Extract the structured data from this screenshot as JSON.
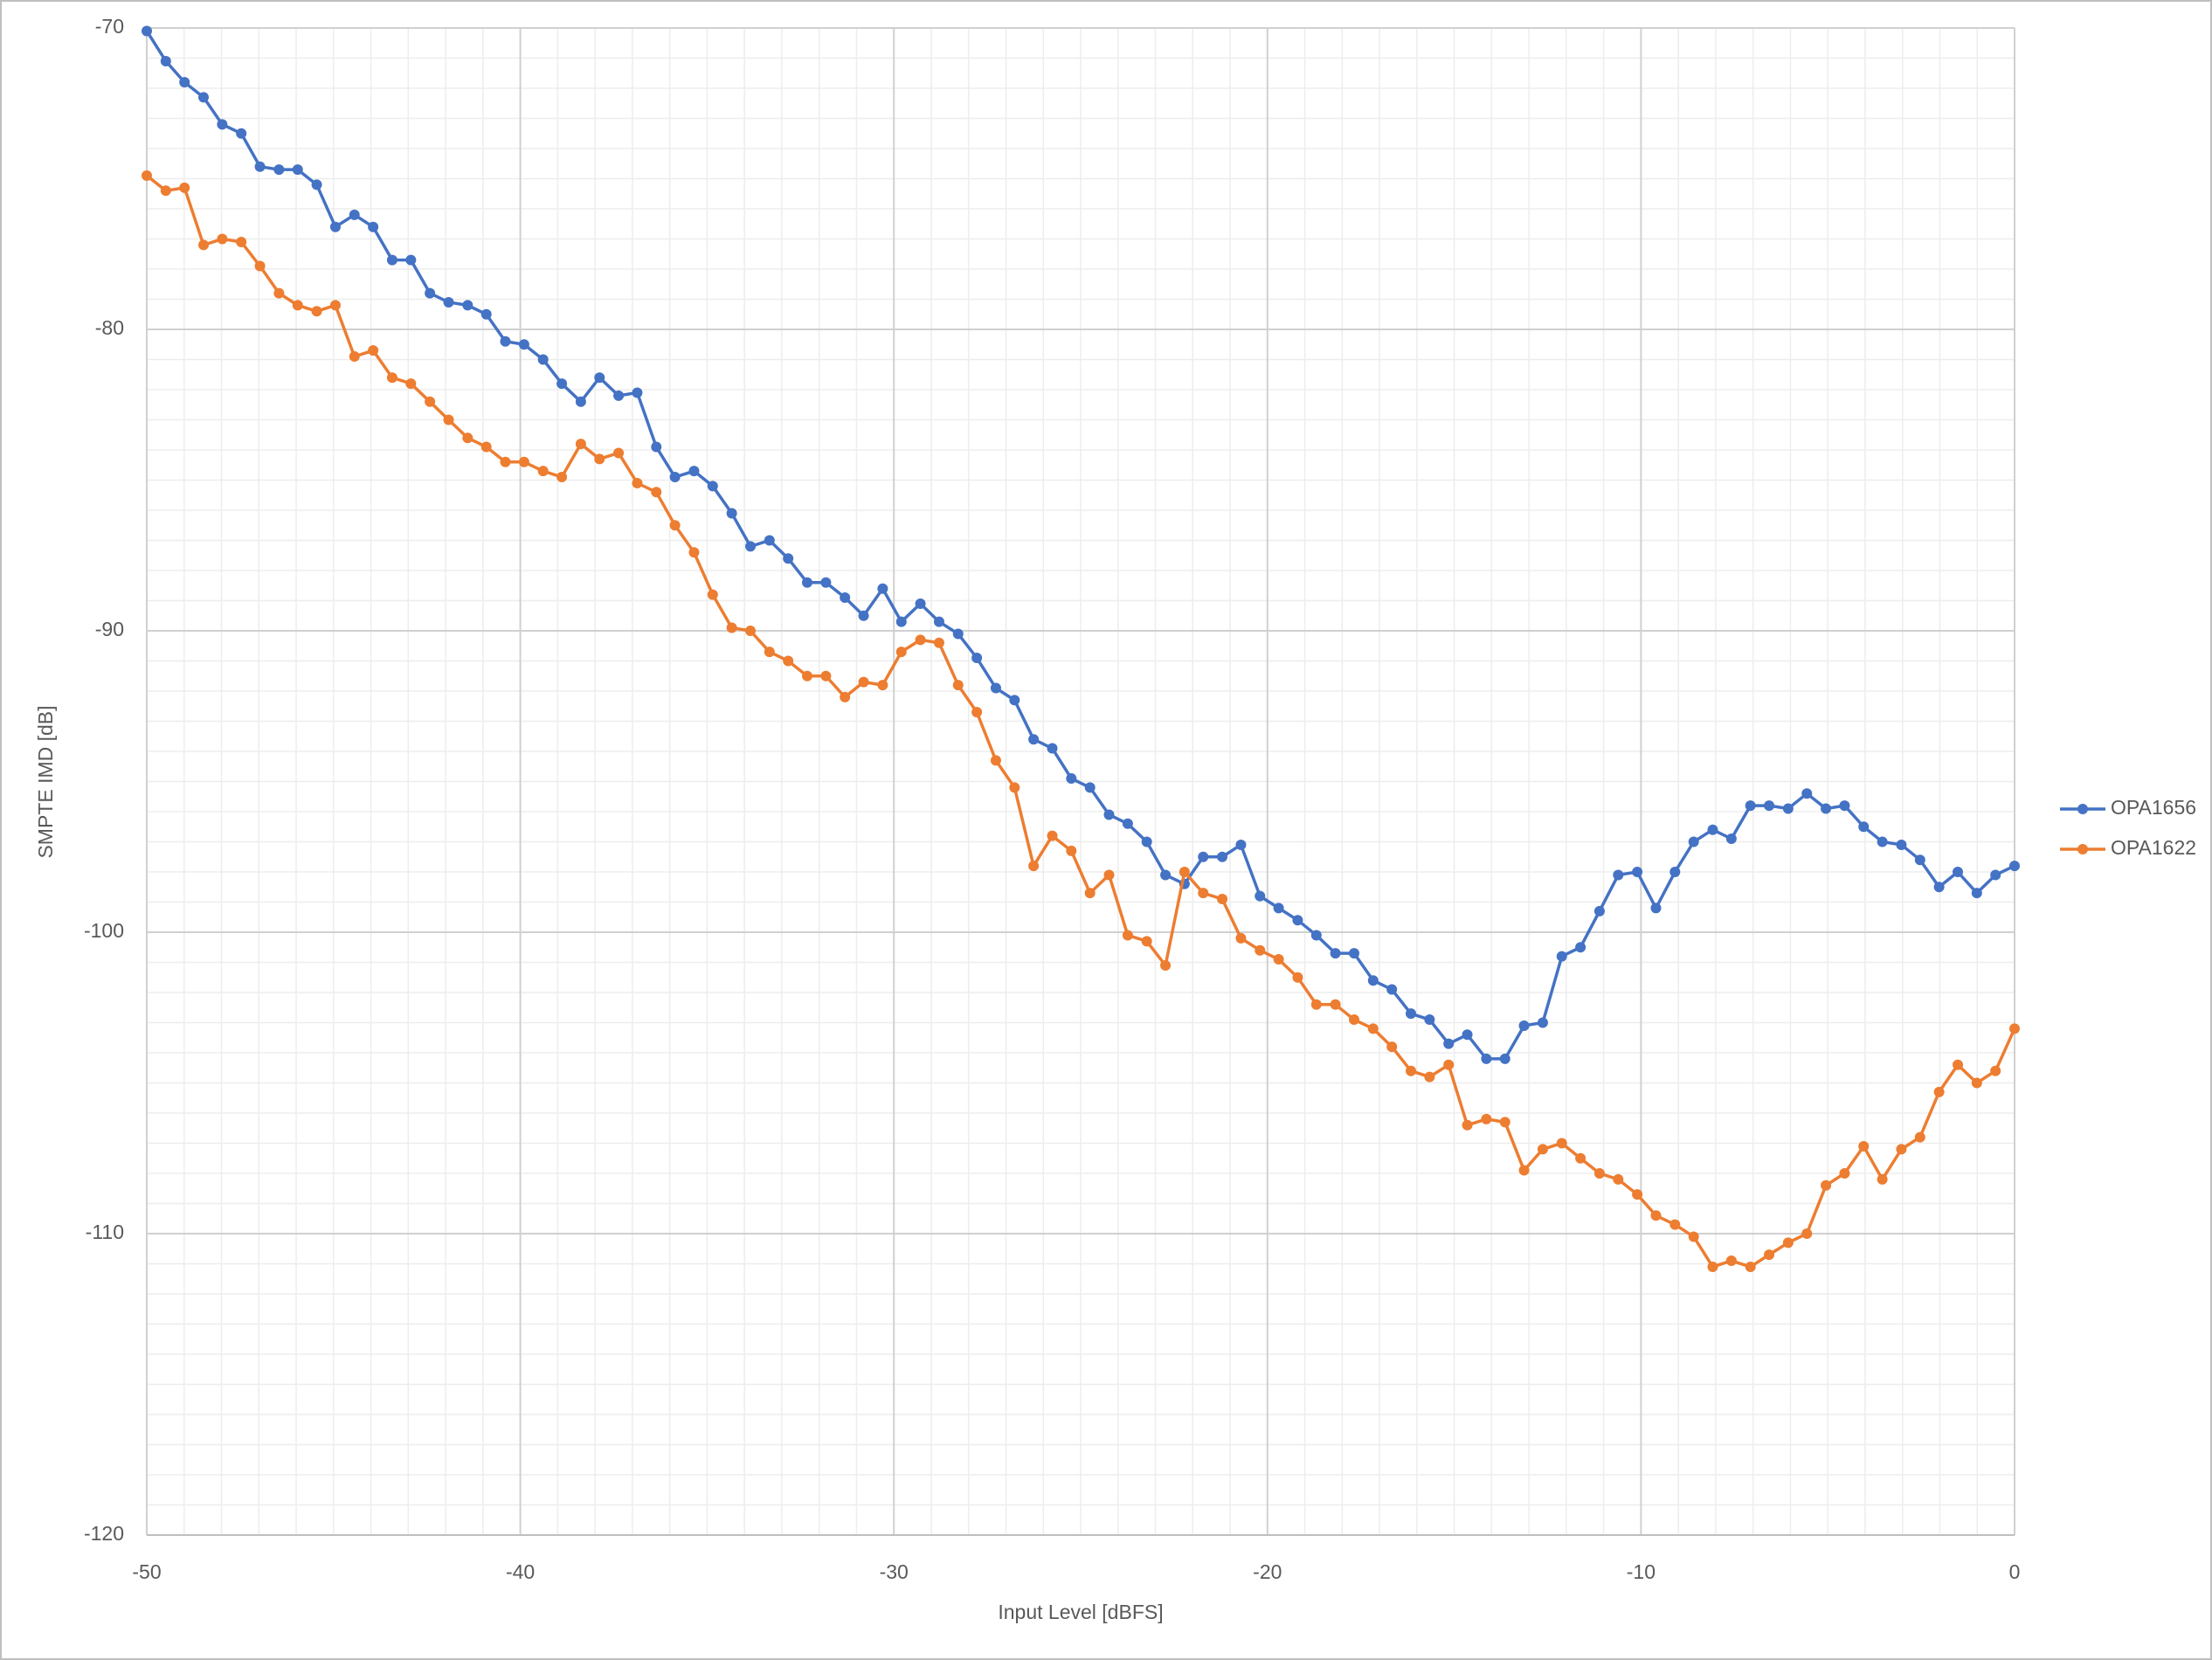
{
  "chart_data": {
    "type": "line",
    "xlabel": "Input Level [dBFS]",
    "ylabel": "SMPTE IMD [dB]",
    "xlim": [
      -50,
      0
    ],
    "xticks": [
      -50,
      -40,
      -30,
      -20,
      -10,
      0
    ],
    "ylim": [
      -120,
      -70
    ],
    "yticks": [
      -120,
      -110,
      -100,
      -90,
      -80,
      -70
    ],
    "grid": true,
    "minor_grid": true,
    "legend": "right",
    "x": [
      -50,
      -49.49,
      -48.99,
      -48.48,
      -47.98,
      -47.47,
      -46.97,
      -46.46,
      -45.96,
      -45.45,
      -44.95,
      -44.44,
      -43.94,
      -43.43,
      -42.93,
      -42.42,
      -41.92,
      -41.41,
      -40.91,
      -40.4,
      -39.9,
      -39.39,
      -38.89,
      -38.38,
      -37.88,
      -37.37,
      -36.87,
      -36.36,
      -35.86,
      -35.35,
      -34.85,
      -34.34,
      -33.84,
      -33.33,
      -32.83,
      -32.32,
      -31.82,
      -31.31,
      -30.81,
      -30.3,
      -29.8,
      -29.29,
      -28.79,
      -28.28,
      -27.78,
      -27.27,
      -26.77,
      -26.26,
      -25.76,
      -25.25,
      -24.75,
      -24.24,
      -23.74,
      -23.23,
      -22.73,
      -22.22,
      -21.72,
      -21.21,
      -20.71,
      -20.2,
      -19.7,
      -19.19,
      -18.69,
      -18.18,
      -17.68,
      -17.17,
      -16.67,
      -16.16,
      -15.66,
      -15.15,
      -14.65,
      -14.14,
      -13.64,
      -13.13,
      -12.63,
      -12.12,
      -11.62,
      -11.11,
      -10.61,
      -10.1,
      -9.6,
      -9.09,
      -8.59,
      -8.08,
      -7.58,
      -7.07,
      -6.57,
      -6.06,
      -5.56,
      -5.05,
      -4.55,
      -4.04,
      -3.54,
      -3.03,
      -2.53,
      -2.02,
      -1.52,
      -1.01,
      -0.51,
      0
    ],
    "series": [
      {
        "name": "OPA1656",
        "color": "#4472c4",
        "values": [
          -70.1,
          -71.1,
          -71.8,
          -72.3,
          -73.2,
          -73.5,
          -74.6,
          -74.7,
          -74.7,
          -75.2,
          -76.6,
          -76.2,
          -76.6,
          -77.7,
          -77.7,
          -78.8,
          -79.1,
          -79.2,
          -79.5,
          -80.4,
          -80.5,
          -81.0,
          -81.8,
          -82.4,
          -81.6,
          -82.2,
          -82.1,
          -83.9,
          -84.9,
          -84.7,
          -85.2,
          -86.1,
          -87.2,
          -87.0,
          -87.6,
          -88.4,
          -88.4,
          -88.9,
          -89.5,
          -88.6,
          -89.7,
          -89.1,
          -89.7,
          -90.1,
          -90.9,
          -91.9,
          -92.3,
          -93.6,
          -93.9,
          -94.9,
          -95.2,
          -96.1,
          -96.4,
          -97.0,
          -98.1,
          -98.4,
          -97.5,
          -97.5,
          -97.1,
          -98.8,
          -99.2,
          -99.6,
          -100.1,
          -100.7,
          -100.7,
          -101.6,
          -101.9,
          -102.7,
          -102.9,
          -103.7,
          -103.4,
          -104.2,
          -104.2,
          -103.1,
          -103.0,
          -100.8,
          -100.5,
          -99.3,
          -98.1,
          -98.0,
          -99.2,
          -98.0,
          -97.0,
          -96.6,
          -96.9,
          -95.8,
          -95.8,
          -95.9,
          -95.4,
          -95.9,
          -95.8,
          -96.5,
          -97.0,
          -97.1,
          -97.6,
          -98.5,
          -98.0,
          -98.7,
          -98.1,
          -97.8
        ]
      },
      {
        "name": "OPA1622",
        "color": "#ed7d31",
        "values": [
          -74.9,
          -75.4,
          -75.3,
          -77.2,
          -77.0,
          -77.1,
          -77.9,
          -78.8,
          -79.2,
          -79.4,
          -79.2,
          -80.9,
          -80.7,
          -81.6,
          -81.8,
          -82.4,
          -83.0,
          -83.6,
          -83.9,
          -84.4,
          -84.4,
          -84.7,
          -84.9,
          -83.8,
          -84.3,
          -84.1,
          -85.1,
          -85.4,
          -86.5,
          -87.4,
          -88.8,
          -89.9,
          -90.0,
          -90.7,
          -91.0,
          -91.5,
          -91.5,
          -92.2,
          -91.7,
          -91.8,
          -90.7,
          -90.3,
          -90.4,
          -91.8,
          -92.7,
          -94.3,
          -95.2,
          -97.8,
          -96.8,
          -97.3,
          -98.7,
          -98.1,
          -100.1,
          -100.3,
          -101.1,
          -98.0,
          -98.7,
          -98.9,
          -100.2,
          -100.6,
          -100.9,
          -101.5,
          -102.4,
          -102.4,
          -102.9,
          -103.2,
          -103.8,
          -104.6,
          -104.8,
          -104.4,
          -106.4,
          -106.2,
          -106.3,
          -107.9,
          -107.2,
          -107.0,
          -107.5,
          -108.0,
          -108.2,
          -108.7,
          -109.4,
          -109.7,
          -110.1,
          -111.1,
          -110.9,
          -111.1,
          -110.7,
          -110.3,
          -110.0,
          -108.4,
          -108.0,
          -107.1,
          -108.2,
          -107.2,
          -106.8,
          -105.3,
          -104.4,
          -105.0,
          -104.6,
          -103.2
        ]
      }
    ]
  }
}
